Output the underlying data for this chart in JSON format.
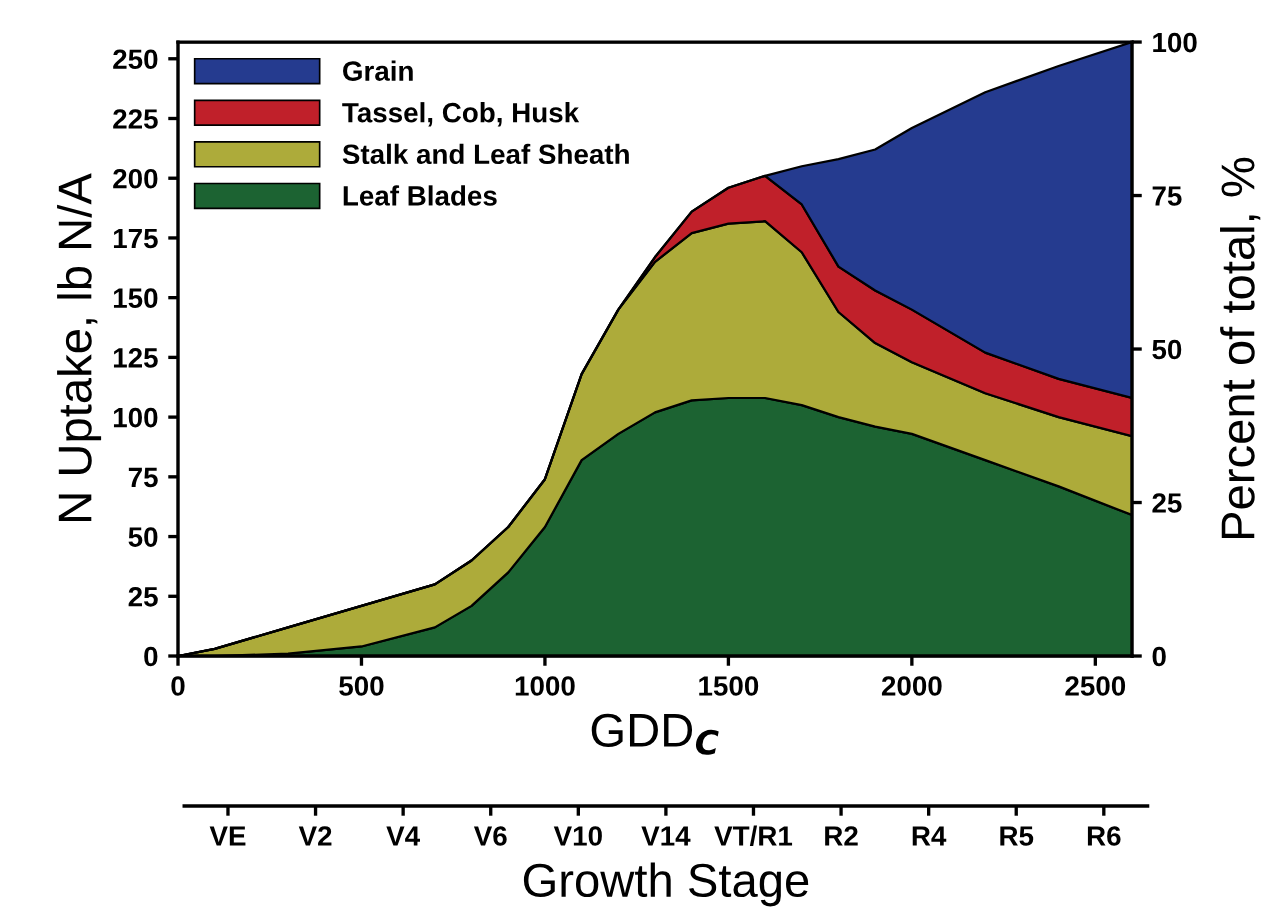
{
  "chart_data": {
    "type": "area",
    "stacked": true,
    "xlabel": "GDD$_{C}$",
    "ylabel": "N Uptake, lb N/A",
    "y2label": "Percent of total, %",
    "x2label": "Growth Stage",
    "x": [
      0,
      100,
      300,
      500,
      700,
      800,
      900,
      1000,
      1100,
      1200,
      1300,
      1400,
      1500,
      1600,
      1700,
      1800,
      1900,
      2000,
      2200,
      2400,
      2600
    ],
    "series": [
      {
        "name": "Leaf Blades",
        "color": "#1c6332",
        "values": [
          0,
          0,
          1,
          4,
          12,
          21,
          35,
          54,
          82,
          93,
          102,
          107,
          108,
          108,
          105,
          100,
          96,
          93,
          82,
          71,
          59
        ]
      },
      {
        "name": "Stalk and Leaf Sheath",
        "color": "#adab3a",
        "values": [
          0,
          3,
          11,
          17,
          18,
          19,
          19,
          20,
          36,
          52,
          63,
          70,
          73,
          74,
          64,
          44,
          35,
          30,
          28,
          29,
          33
        ]
      },
      {
        "name": "Tassel, Cob, Husk",
        "color": "#c0202a",
        "values": [
          0,
          0,
          0,
          0,
          0,
          0,
          0,
          0,
          0,
          0,
          2,
          9,
          15,
          19,
          20,
          19,
          22,
          22,
          17,
          16,
          16
        ]
      },
      {
        "name": "Grain",
        "color": "#253b8f",
        "values": [
          0,
          0,
          0,
          0,
          0,
          0,
          0,
          0,
          0,
          0,
          0,
          0,
          0,
          0,
          16,
          45,
          59,
          76,
          109,
          131,
          149
        ]
      }
    ],
    "xlim": [
      0,
      2600
    ],
    "xticks": [
      0,
      500,
      1000,
      1500,
      2000,
      2500
    ],
    "ylim": [
      0,
      257
    ],
    "yticks": [
      0,
      25,
      50,
      75,
      100,
      125,
      150,
      175,
      200,
      225,
      250
    ],
    "y2lim": [
      0,
      100
    ],
    "y2ticks": [
      0,
      25,
      50,
      75,
      100
    ],
    "annotations": [
      "VE",
      "V2",
      "V4",
      "V6",
      "V10",
      "V14",
      "VT/R1",
      "R2",
      "R4",
      "R5",
      "R6"
    ],
    "legend": "top left",
    "grid": false
  }
}
